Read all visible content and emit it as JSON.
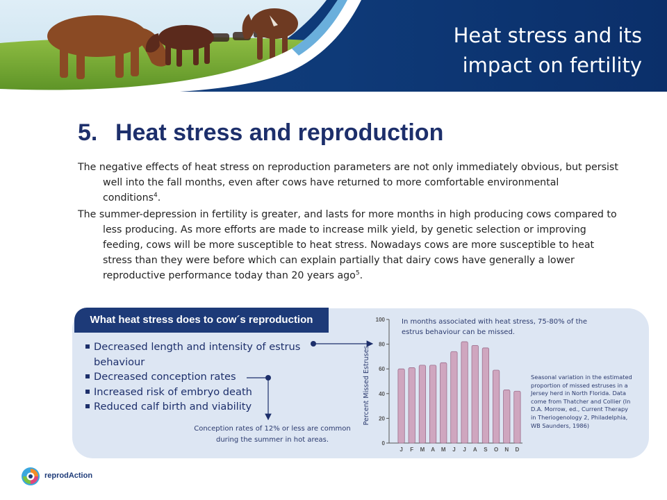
{
  "header": {
    "title": "Heat stress and its impact on fertility",
    "image_alt": "cows grazing on pasture"
  },
  "section": {
    "number": "5.",
    "title": "Heat stress and reproduction"
  },
  "paragraphs": [
    {
      "text": "The negative effects of heat stress on reproduction parameters are not only immediately obvious, but persist well into the fall months, even after cows have returned to more comfortable environmental conditions",
      "ref": "4",
      "end": "."
    },
    {
      "text": "The summer-depression in fertility is greater, and lasts for more months in high producing cows compared to less producing. As more efforts are made to increase milk yield, by genetic selection or improving feeding, cows will be more susceptible to heat stress. Nowadays cows are more susceptible to heat stress than they were before which can explain partially that dairy cows have generally a lower reproductive performance today than 20 years ago",
      "ref": "5",
      "end": "."
    }
  ],
  "panel": {
    "tab_title": "What heat stress does to cow´s reproduction",
    "effects": [
      "Decreased length and intensity of estrus behaviour",
      "Decreased conception rates",
      "Increased risk of embryo death",
      "Reduced calf birth and viability"
    ],
    "conception_note": "Conception rates of 12% or less are common during the summer in hot areas.",
    "chart_annotation": "In months associated with heat stress, 75-80% of the estrus behaviour can be missed.",
    "chart_caption": "Seasonal variation in the estimated proportion of missed estruses in a Jersey herd in North Florida. Data come from Thatcher and Collier (In D.A. Morrow, ed., Current Therapy in Theriogenology 2, Philadelphia, WB Saunders, 1986)"
  },
  "chart_data": {
    "type": "bar",
    "categories": [
      "J",
      "F",
      "M",
      "A",
      "M",
      "J",
      "J",
      "A",
      "S",
      "O",
      "N",
      "D"
    ],
    "values": [
      60,
      61,
      63,
      63,
      65,
      74,
      82,
      79,
      77,
      59,
      43,
      42
    ],
    "title": "",
    "xlabel": "",
    "ylabel": "Percent Missed Estruses",
    "ylim": [
      0,
      100
    ],
    "yticks": [
      0,
      20,
      40,
      60,
      80,
      100
    ],
    "grid": false,
    "bar_color": "#cfa6bf",
    "bar_stroke": "#9c6f8d"
  },
  "logo": {
    "text": "reprodAction"
  },
  "colors": {
    "primary": "#1d2f6b",
    "header_blue": "#0e3a78",
    "panel_bg": "#dde6f3",
    "tab_bg": "#1d3a78"
  }
}
